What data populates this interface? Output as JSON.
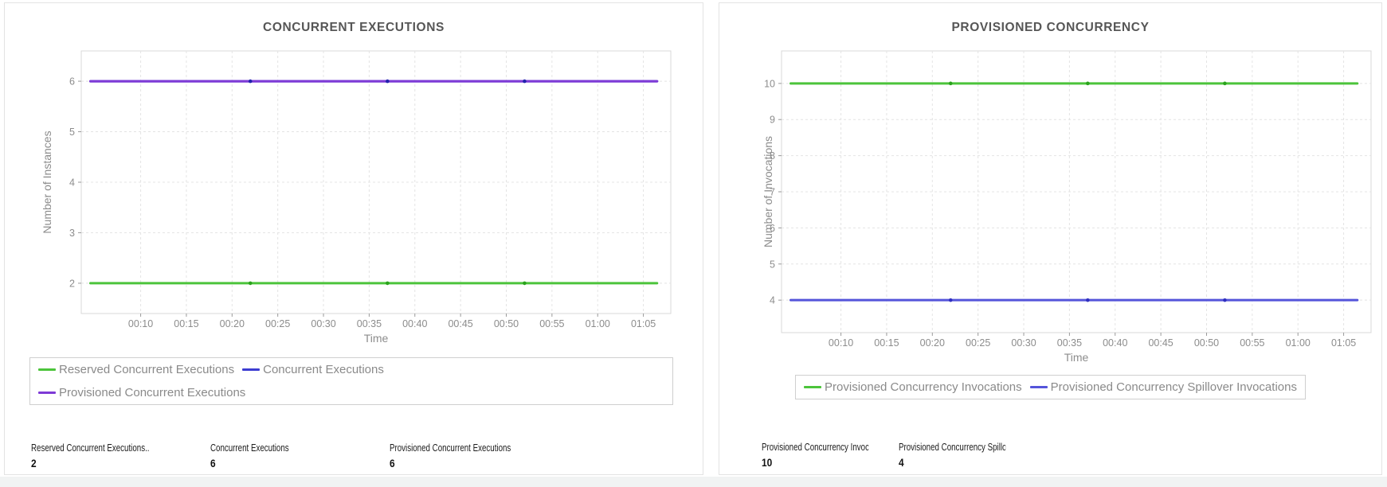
{
  "chart_data": [
    {
      "type": "line",
      "title": "CONCURRENT EXECUTIONS",
      "xlabel": "Time",
      "ylabel": "Number of Instances",
      "x_tick_labels": [
        "00:10",
        "00:15",
        "00:20",
        "00:25",
        "00:30",
        "00:35",
        "00:40",
        "00:45",
        "00:50",
        "00:55",
        "01:00",
        "01:05"
      ],
      "x_tick_minutes": [
        10,
        15,
        20,
        25,
        30,
        35,
        40,
        45,
        50,
        55,
        60,
        65
      ],
      "xlim_minutes": [
        3.5,
        68
      ],
      "x_range_minutes": [
        4.5,
        66.5
      ],
      "y_ticks": [
        2,
        3,
        4,
        5,
        6
      ],
      "ylim": [
        1.4,
        6.6
      ],
      "grid": "dashed",
      "legend_position": "below-left",
      "series": [
        {
          "name": "Reserved Concurrent Executions",
          "value": 2,
          "color": "#4cc43b",
          "marker_color": "#2aa31c",
          "marker_minutes": [
            22,
            37,
            52
          ]
        },
        {
          "name": "Concurrent Executions",
          "value": 6,
          "color": "#3d3dd1",
          "marker_color": "#2323ad",
          "marker_minutes": [
            22,
            37,
            52
          ]
        },
        {
          "name": "Provisioned Concurrent Executions",
          "value": 6,
          "color": "#7e3ad6",
          "marker_color": "#7e3ad6",
          "marker_minutes": []
        }
      ],
      "stats": [
        {
          "label": "Reserved Concurrent Executions..",
          "value": "2"
        },
        {
          "label": "Concurrent Executions",
          "value": "6"
        },
        {
          "label": "Provisioned Concurrent Executions",
          "value": "6"
        }
      ]
    },
    {
      "type": "line",
      "title": "PROVISIONED CONCURRENCY",
      "xlabel": "Time",
      "ylabel": "Number of Invocations",
      "x_tick_labels": [
        "00:10",
        "00:15",
        "00:20",
        "00:25",
        "00:30",
        "00:35",
        "00:40",
        "00:45",
        "00:50",
        "00:55",
        "01:00",
        "01:05"
      ],
      "x_tick_minutes": [
        10,
        15,
        20,
        25,
        30,
        35,
        40,
        45,
        50,
        55,
        60,
        65
      ],
      "xlim_minutes": [
        3.5,
        68
      ],
      "x_range_minutes": [
        4.5,
        66.5
      ],
      "y_ticks": [
        4,
        5,
        6,
        7,
        8,
        9,
        10
      ],
      "ylim": [
        3.1,
        10.9
      ],
      "grid": "dashed",
      "legend_position": "below-center",
      "series": [
        {
          "name": "Provisioned Concurrency Invocations",
          "value": 10,
          "color": "#4cc43b",
          "marker_color": "#2aa31c",
          "marker_minutes": [
            22,
            37,
            52
          ]
        },
        {
          "name": "Provisioned Concurrency Spillover Invocations",
          "value": 4,
          "color": "#5454da",
          "marker_color": "#3030c0",
          "marker_minutes": [
            22,
            37,
            52
          ]
        }
      ],
      "stats": [
        {
          "label": "Provisioned Concurrency Invocations",
          "value": "10"
        },
        {
          "label": "Provisioned Concurrency Spillover Invocations",
          "value": "4"
        }
      ]
    }
  ],
  "colors": {
    "grid": "#e4e4e4",
    "plot_border": "#d9d9d9",
    "tick": "#9a9a9a",
    "axis_text": "#8c8c8c",
    "panel_border": "#e3e3e3",
    "legend_border": "#cfcfcf",
    "title_text": "#565656"
  }
}
